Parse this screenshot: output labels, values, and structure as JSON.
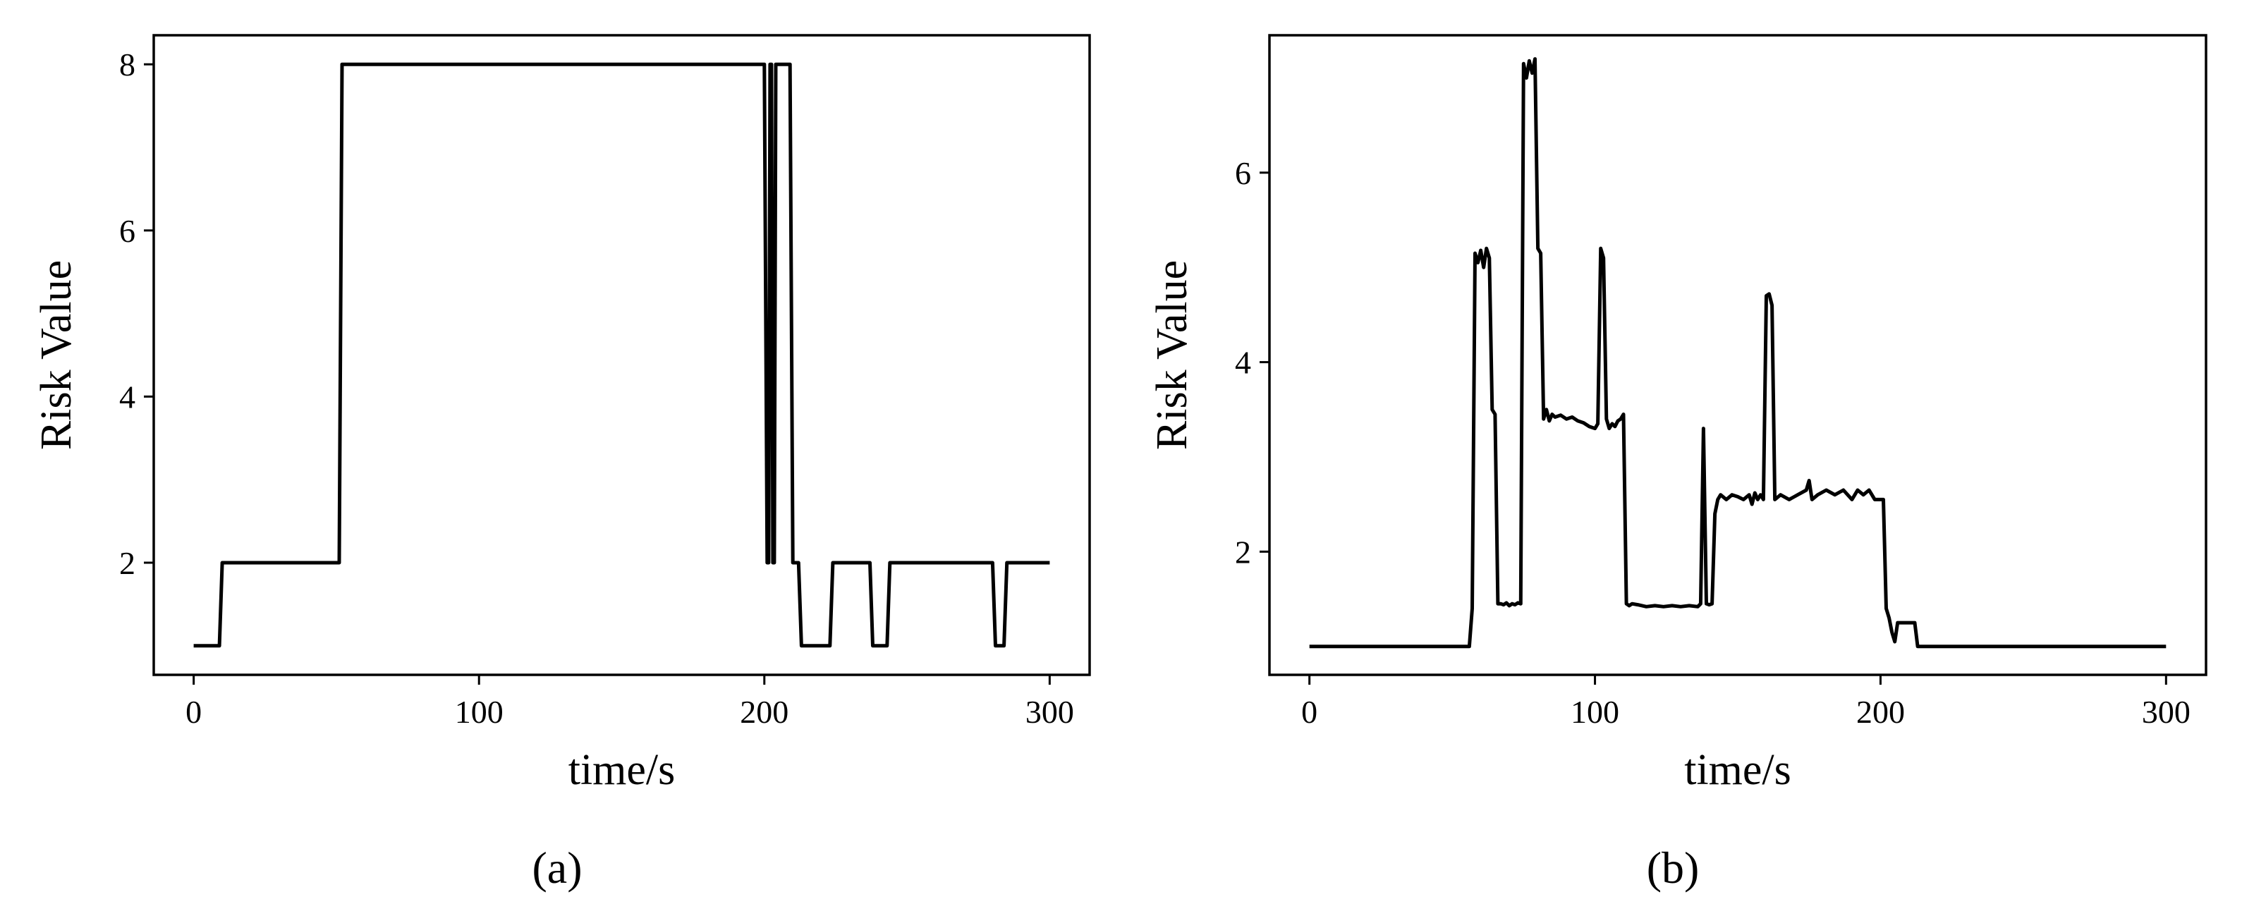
{
  "chart_data": [
    {
      "type": "line",
      "panel_label": "(a)",
      "xlabel": "time/s",
      "ylabel": "Risk Value",
      "xlim": [
        -14,
        314
      ],
      "ylim": [
        0.65,
        8.35
      ],
      "xticks": [
        0,
        100,
        200,
        300
      ],
      "yticks": [
        2,
        4,
        6,
        8
      ],
      "grid": false,
      "color": "#000000",
      "series": [
        {
          "x": [
            0,
            9,
            10,
            51,
            52,
            200,
            201,
            201.5,
            202,
            202.5,
            203,
            203.5,
            204,
            209,
            210,
            212,
            213,
            223,
            224,
            237,
            238,
            243,
            244,
            280,
            281,
            284,
            285,
            300
          ],
          "y": [
            1,
            1,
            2,
            2,
            8,
            8,
            2,
            2,
            8,
            8,
            2,
            2,
            8,
            8,
            2,
            2,
            1,
            1,
            2,
            2,
            1,
            1,
            2,
            2,
            1,
            1,
            2,
            2
          ]
        }
      ]
    },
    {
      "type": "line",
      "panel_label": "(b)",
      "xlabel": "time/s",
      "ylabel": "Risk Value",
      "xlim": [
        -14,
        314
      ],
      "ylim": [
        0.7,
        7.45
      ],
      "xticks": [
        0,
        100,
        200,
        300
      ],
      "yticks": [
        2,
        4,
        6
      ],
      "grid": false,
      "color": "#000000",
      "series": [
        {
          "x": [
            0,
            56,
            57,
            58,
            59,
            60,
            61,
            62,
            63,
            64,
            65,
            66,
            67,
            68,
            69,
            70,
            71,
            72,
            73,
            74,
            75,
            76,
            77,
            78,
            79,
            80,
            81,
            82,
            83,
            84,
            85,
            86,
            88,
            90,
            92,
            94,
            96,
            98,
            100,
            101,
            102,
            103,
            104,
            105,
            106,
            107,
            108,
            109,
            110,
            111,
            112,
            113,
            115,
            118,
            121,
            124,
            127,
            130,
            133,
            136,
            137,
            138,
            139,
            140,
            141,
            142,
            143,
            144,
            146,
            148,
            150,
            152,
            154,
            155,
            156,
            157,
            158,
            159,
            160,
            161,
            162,
            163,
            165,
            168,
            171,
            174,
            175,
            176,
            178,
            181,
            184,
            187,
            190,
            192,
            194,
            196,
            198,
            200,
            201,
            202,
            203,
            204,
            205,
            206,
            208,
            210,
            212,
            213,
            214,
            300
          ],
          "y": [
            1,
            1,
            1.4,
            5.15,
            5.05,
            5.18,
            5.0,
            5.2,
            5.1,
            3.5,
            3.45,
            1.45,
            1.45,
            1.44,
            1.46,
            1.43,
            1.45,
            1.44,
            1.46,
            1.45,
            7.15,
            7.0,
            7.18,
            7.05,
            7.2,
            5.2,
            5.15,
            3.4,
            3.5,
            3.38,
            3.45,
            3.42,
            3.44,
            3.4,
            3.42,
            3.38,
            3.36,
            3.32,
            3.3,
            3.35,
            5.2,
            5.1,
            3.4,
            3.3,
            3.35,
            3.32,
            3.38,
            3.4,
            3.45,
            1.45,
            1.43,
            1.45,
            1.44,
            1.42,
            1.43,
            1.42,
            1.43,
            1.42,
            1.43,
            1.42,
            1.45,
            3.3,
            1.45,
            1.44,
            1.45,
            2.4,
            2.55,
            2.6,
            2.55,
            2.6,
            2.58,
            2.55,
            2.6,
            2.5,
            2.62,
            2.55,
            2.6,
            2.55,
            4.7,
            4.72,
            4.6,
            2.55,
            2.6,
            2.55,
            2.6,
            2.65,
            2.75,
            2.55,
            2.6,
            2.65,
            2.6,
            2.65,
            2.55,
            2.65,
            2.6,
            2.65,
            2.55,
            2.55,
            2.55,
            1.4,
            1.3,
            1.15,
            1.05,
            1.25,
            1.25,
            1.25,
            1.25,
            1.0,
            1.0,
            1.0
          ]
        }
      ]
    }
  ]
}
